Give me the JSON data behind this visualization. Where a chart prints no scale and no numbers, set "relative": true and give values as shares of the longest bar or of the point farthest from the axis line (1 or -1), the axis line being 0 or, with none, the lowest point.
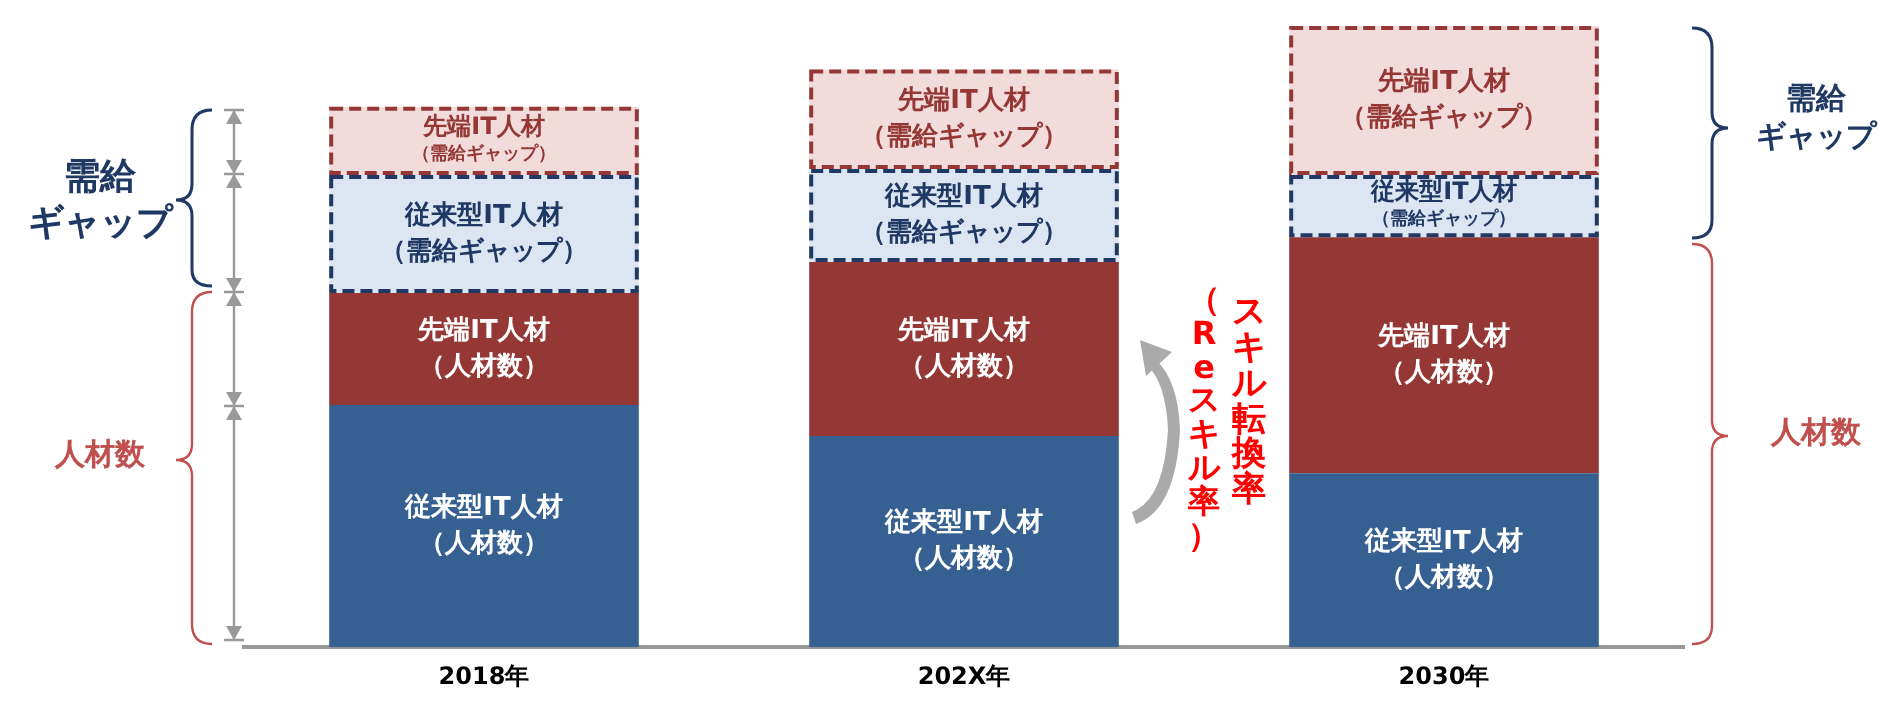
{
  "chart_data": {
    "type": "bar",
    "stacked": true,
    "relative": true,
    "legend": false,
    "grid": false,
    "categories": [
      "2018年",
      "202X年",
      "2030年"
    ],
    "series": [
      {
        "name": "従来型IT人材（人材数）",
        "color": "#376092",
        "values": [
          0.39,
          0.34,
          0.28
        ]
      },
      {
        "name": "先端IT人材（人材数）",
        "color": "#953735",
        "values": [
          0.18,
          0.28,
          0.38
        ]
      },
      {
        "name": "従来型IT人材（需給ギャップ）",
        "color": "#dce6f2",
        "line_style": "dashed",
        "values": [
          0.19,
          0.15,
          0.1
        ]
      },
      {
        "name": "先端IT人材（需給ギャップ）",
        "color": "#f2dcdb",
        "line_style": "dashed",
        "values": [
          0.11,
          0.16,
          0.24
        ]
      }
    ],
    "annotations": [
      "需給ギャップ",
      "人材数",
      "需給ギャップ",
      "人材数",
      "スキル転換率",
      "（Reスキル率）"
    ]
  }
}
